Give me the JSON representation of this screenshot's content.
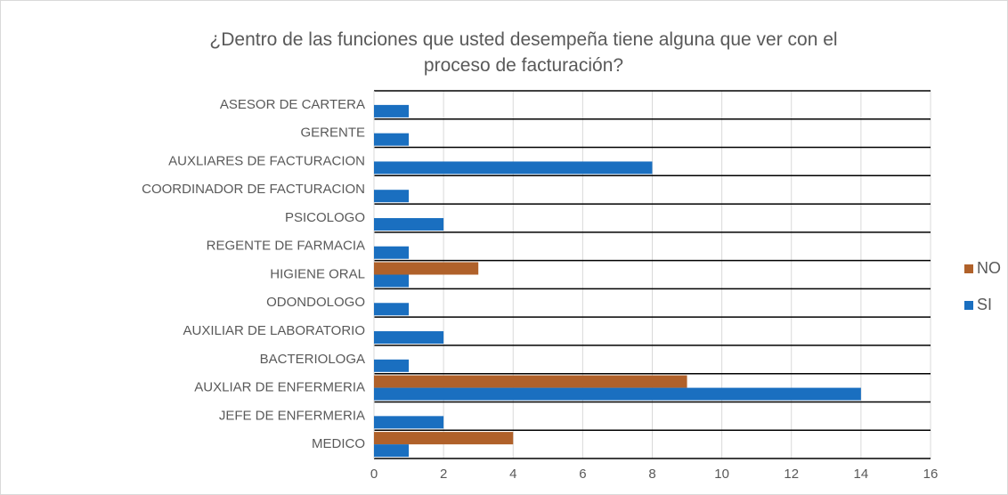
{
  "chart_data": {
    "type": "bar",
    "orientation": "horizontal",
    "title": "¿Dentro de las funciones que usted desempeña tiene alguna que ver con el proceso de facturación?",
    "categories": [
      "ASESOR DE CARTERA",
      "GERENTE",
      "AUXLIARES DE FACTURACION",
      "COORDINADOR DE FACTURACION",
      "PSICOLOGO",
      "REGENTE DE FARMACIA",
      "HIGIENE ORAL",
      "ODONDOLOGO",
      "AUXILIAR DE LABORATORIO",
      "BACTERIOLOGA",
      "AUXLIAR DE ENFERMERIA",
      "JEFE DE ENFERMERIA",
      "MEDICO"
    ],
    "series": [
      {
        "name": "NO",
        "color": "#b0612a",
        "values": [
          null,
          null,
          null,
          null,
          null,
          null,
          3,
          null,
          null,
          null,
          9,
          null,
          4
        ]
      },
      {
        "name": "SI",
        "color": "#1a6fc0",
        "values": [
          1,
          1,
          8,
          1,
          2,
          1,
          1,
          1,
          2,
          1,
          14,
          2,
          1
        ]
      }
    ],
    "xlim": [
      0,
      16
    ],
    "xticks": [
      0,
      2,
      4,
      6,
      8,
      10,
      12,
      14,
      16
    ],
    "grid": true,
    "legend": "right"
  }
}
